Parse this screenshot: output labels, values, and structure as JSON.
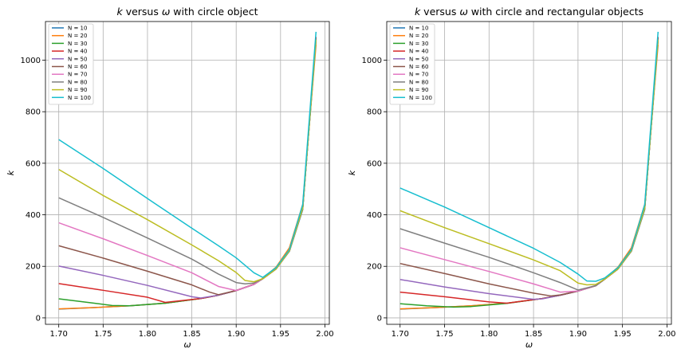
{
  "chart_data": [
    {
      "type": "line",
      "title": "k versus ω with circle object",
      "title_var1": "k",
      "title_mid": " versus ",
      "title_var2": "ω",
      "title_rest": " with circle object",
      "xlabel": "ω",
      "ylabel": "k",
      "xlim": [
        1.685,
        2.005
      ],
      "ylim": [
        -25,
        1150
      ],
      "xticks": [
        1.7,
        1.75,
        1.8,
        1.85,
        1.9,
        1.95,
        2.0
      ],
      "yticks": [
        0,
        200,
        400,
        600,
        800,
        1000
      ],
      "xtick_labels": [
        "1.70",
        "1.75",
        "1.80",
        "1.85",
        "1.90",
        "1.95",
        "2.00"
      ],
      "ytick_labels": [
        "0",
        "200",
        "400",
        "600",
        "800",
        "1000"
      ],
      "grid": true,
      "legend_position": "top-left",
      "series": [
        {
          "name": "N = 10",
          "color": "#1f77b4",
          "x": [
            1.7,
            1.74,
            1.78,
            1.82,
            1.86,
            1.88,
            1.9,
            1.92,
            1.93,
            1.945,
            1.96,
            1.975,
            1.99
          ],
          "y": [
            34,
            40,
            47,
            57,
            75,
            88,
            106,
            130,
            152,
            190,
            258,
            420,
            1090
          ]
        },
        {
          "name": "N = 20",
          "color": "#ff7f0e",
          "x": [
            1.7,
            1.74,
            1.78,
            1.82,
            1.86,
            1.88,
            1.9,
            1.92,
            1.93,
            1.945,
            1.96,
            1.975,
            1.99
          ],
          "y": [
            35,
            40,
            47,
            57,
            75,
            88,
            106,
            131,
            154,
            197,
            272,
            440,
            1060
          ]
        },
        {
          "name": "N = 30",
          "color": "#2ca02c",
          "x": [
            1.7,
            1.74,
            1.76,
            1.78,
            1.82,
            1.86,
            1.88,
            1.9,
            1.92,
            1.93,
            1.945,
            1.96,
            1.975,
            1.99
          ],
          "y": [
            74,
            57,
            48,
            47,
            57,
            75,
            88,
            106,
            130,
            152,
            190,
            260,
            425,
            1080
          ]
        },
        {
          "name": "N = 40",
          "color": "#d62728",
          "x": [
            1.7,
            1.75,
            1.8,
            1.82,
            1.86,
            1.88,
            1.9,
            1.92,
            1.93,
            1.945,
            1.96,
            1.975,
            1.99
          ],
          "y": [
            133,
            107,
            80,
            60,
            75,
            88,
            106,
            130,
            152,
            190,
            260,
            425,
            1090
          ]
        },
        {
          "name": "N = 50",
          "color": "#9467bd",
          "x": [
            1.7,
            1.75,
            1.8,
            1.85,
            1.86,
            1.88,
            1.9,
            1.92,
            1.93,
            1.945,
            1.96,
            1.975,
            1.99
          ],
          "y": [
            201,
            165,
            126,
            82,
            77,
            88,
            106,
            130,
            152,
            190,
            260,
            425,
            1080
          ]
        },
        {
          "name": "N = 60",
          "color": "#8c564b",
          "x": [
            1.7,
            1.75,
            1.8,
            1.85,
            1.87,
            1.88,
            1.9,
            1.92,
            1.93,
            1.945,
            1.96,
            1.975,
            1.99
          ],
          "y": [
            280,
            232,
            181,
            128,
            100,
            90,
            106,
            130,
            152,
            190,
            260,
            425,
            1080
          ]
        },
        {
          "name": "N = 70",
          "color": "#e377c2",
          "x": [
            1.7,
            1.75,
            1.8,
            1.85,
            1.88,
            1.9,
            1.92,
            1.93,
            1.945,
            1.96,
            1.975,
            1.99
          ],
          "y": [
            369,
            307,
            242,
            175,
            122,
            106,
            130,
            152,
            190,
            260,
            425,
            1080
          ]
        },
        {
          "name": "N = 80",
          "color": "#7f7f7f",
          "x": [
            1.7,
            1.75,
            1.8,
            1.85,
            1.88,
            1.9,
            1.91,
            1.92,
            1.93,
            1.945,
            1.96,
            1.975,
            1.99
          ],
          "y": [
            466,
            390,
            310,
            228,
            170,
            137,
            132,
            135,
            152,
            190,
            260,
            425,
            1080
          ]
        },
        {
          "name": "N = 90",
          "color": "#bcbd22",
          "x": [
            1.7,
            1.75,
            1.8,
            1.85,
            1.88,
            1.9,
            1.91,
            1.92,
            1.93,
            1.945,
            1.96,
            1.975,
            1.99
          ],
          "y": [
            576,
            475,
            381,
            283,
            222,
            176,
            145,
            140,
            152,
            190,
            260,
            425,
            1080
          ]
        },
        {
          "name": "N = 100",
          "color": "#17becf",
          "x": [
            1.7,
            1.75,
            1.8,
            1.85,
            1.88,
            1.9,
            1.92,
            1.93,
            1.945,
            1.96,
            1.975,
            1.99
          ],
          "y": [
            692,
            580,
            463,
            348,
            280,
            233,
            175,
            157,
            195,
            265,
            440,
            1110
          ]
        }
      ]
    },
    {
      "type": "line",
      "title": "k versus ω with circle and rectangular objects",
      "title_var1": "k",
      "title_mid": " versus ",
      "title_var2": "ω",
      "title_rest": " with circle and rectangular objects",
      "xlabel": "ω",
      "ylabel": "k",
      "xlim": [
        1.685,
        2.005
      ],
      "ylim": [
        -25,
        1150
      ],
      "xticks": [
        1.7,
        1.75,
        1.8,
        1.85,
        1.9,
        1.95,
        2.0
      ],
      "yticks": [
        0,
        200,
        400,
        600,
        800,
        1000
      ],
      "xtick_labels": [
        "1.70",
        "1.75",
        "1.80",
        "1.85",
        "1.90",
        "1.95",
        "2.00"
      ],
      "ytick_labels": [
        "0",
        "200",
        "400",
        "600",
        "800",
        "1000"
      ],
      "grid": true,
      "legend_position": "top-left",
      "series": [
        {
          "name": "N = 10",
          "color": "#1f77b4",
          "x": [
            1.7,
            1.74,
            1.78,
            1.82,
            1.86,
            1.88,
            1.9,
            1.92,
            1.93,
            1.945,
            1.96,
            1.975,
            1.99
          ],
          "y": [
            34,
            40,
            47,
            57,
            75,
            88,
            104,
            125,
            150,
            190,
            258,
            420,
            1090
          ]
        },
        {
          "name": "N = 20",
          "color": "#ff7f0e",
          "x": [
            1.7,
            1.74,
            1.78,
            1.82,
            1.86,
            1.88,
            1.9,
            1.92,
            1.93,
            1.945,
            1.96,
            1.975,
            1.99
          ],
          "y": [
            35,
            40,
            47,
            57,
            75,
            88,
            104,
            125,
            152,
            197,
            272,
            440,
            1060
          ]
        },
        {
          "name": "N = 30",
          "color": "#2ca02c",
          "x": [
            1.7,
            1.73,
            1.76,
            1.78,
            1.82,
            1.86,
            1.88,
            1.9,
            1.92,
            1.93,
            1.945,
            1.96,
            1.975,
            1.99
          ],
          "y": [
            55,
            47,
            42,
            44,
            56,
            75,
            88,
            104,
            125,
            150,
            190,
            260,
            425,
            1080
          ]
        },
        {
          "name": "N = 40",
          "color": "#d62728",
          "x": [
            1.7,
            1.75,
            1.8,
            1.82,
            1.86,
            1.88,
            1.9,
            1.92,
            1.93,
            1.945,
            1.96,
            1.975,
            1.99
          ],
          "y": [
            100,
            82,
            62,
            57,
            75,
            88,
            104,
            125,
            150,
            190,
            260,
            425,
            1090
          ]
        },
        {
          "name": "N = 50",
          "color": "#9467bd",
          "x": [
            1.7,
            1.75,
            1.8,
            1.85,
            1.86,
            1.88,
            1.9,
            1.92,
            1.93,
            1.945,
            1.96,
            1.975,
            1.99
          ],
          "y": [
            149,
            120,
            94,
            72,
            74,
            88,
            104,
            125,
            150,
            190,
            260,
            425,
            1080
          ]
        },
        {
          "name": "N = 60",
          "color": "#8c564b",
          "x": [
            1.7,
            1.75,
            1.8,
            1.85,
            1.87,
            1.88,
            1.9,
            1.92,
            1.93,
            1.945,
            1.96,
            1.975,
            1.99
          ],
          "y": [
            211,
            172,
            132,
            96,
            85,
            89,
            104,
            125,
            150,
            190,
            260,
            425,
            1080
          ]
        },
        {
          "name": "N = 70",
          "color": "#e377c2",
          "x": [
            1.7,
            1.75,
            1.8,
            1.85,
            1.88,
            1.9,
            1.92,
            1.93,
            1.945,
            1.96,
            1.975,
            1.99
          ],
          "y": [
            272,
            226,
            180,
            132,
            100,
            104,
            125,
            150,
            190,
            260,
            425,
            1080
          ]
        },
        {
          "name": "N = 80",
          "color": "#7f7f7f",
          "x": [
            1.7,
            1.75,
            1.8,
            1.85,
            1.88,
            1.9,
            1.92,
            1.93,
            1.945,
            1.96,
            1.975,
            1.99
          ],
          "y": [
            346,
            290,
            235,
            175,
            137,
            108,
            125,
            150,
            190,
            260,
            425,
            1080
          ]
        },
        {
          "name": "N = 90",
          "color": "#bcbd22",
          "x": [
            1.7,
            1.75,
            1.8,
            1.85,
            1.88,
            1.9,
            1.91,
            1.92,
            1.93,
            1.945,
            1.96,
            1.975,
            1.99
          ],
          "y": [
            416,
            350,
            288,
            225,
            183,
            135,
            128,
            130,
            150,
            190,
            260,
            425,
            1080
          ]
        },
        {
          "name": "N = 100",
          "color": "#17becf",
          "x": [
            1.7,
            1.75,
            1.8,
            1.85,
            1.88,
            1.9,
            1.91,
            1.92,
            1.93,
            1.945,
            1.96,
            1.975,
            1.99
          ],
          "y": [
            504,
            430,
            350,
            270,
            215,
            170,
            143,
            142,
            155,
            195,
            265,
            440,
            1110
          ]
        }
      ]
    }
  ]
}
